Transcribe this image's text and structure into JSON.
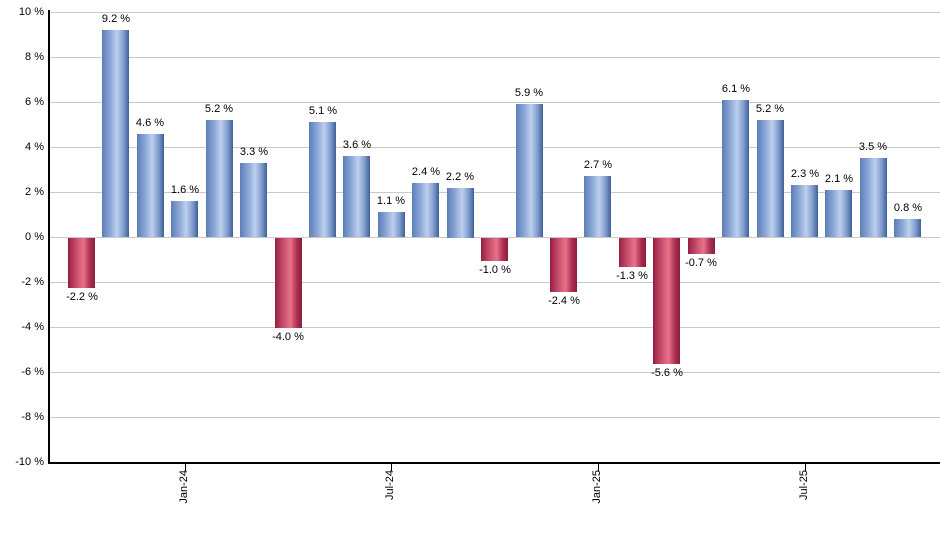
{
  "chart_data": {
    "type": "bar",
    "title": "",
    "description": "Monthly returns bar chart, positive months blue, negative months red",
    "values": [
      -2.2,
      9.2,
      4.6,
      1.6,
      5.2,
      3.3,
      -4.0,
      5.1,
      3.6,
      1.1,
      2.4,
      2.2,
      -1.0,
      5.9,
      -2.4,
      2.7,
      -1.3,
      -5.6,
      -0.7,
      6.1,
      5.2,
      2.3,
      2.1,
      3.5,
      0.8
    ],
    "value_labels": [
      "-2.2 %",
      "9.2 %",
      "4.6 %",
      "1.6 %",
      "5.2 %",
      "3.3 %",
      "-4.0 %",
      "5.1 %",
      "3.6 %",
      "1.1 %",
      "2.4 %",
      "2.2 %",
      "-1.0 %",
      "5.9 %",
      "-2.4 %",
      "2.7 %",
      "-1.3 %",
      "-5.6 %",
      "-0.7 %",
      "6.1 %",
      "5.2 %",
      "2.3 %",
      "2.1 %",
      "3.5 %",
      "0.8 %"
    ],
    "x_ticks": [
      {
        "label": "Jan-24",
        "bar_index": 3
      },
      {
        "label": "Jul-24",
        "bar_index": 9
      },
      {
        "label": "Jan-25",
        "bar_index": 15
      },
      {
        "label": "Jul-25",
        "bar_index": 21
      }
    ],
    "y_tick_labels": [
      "10 %",
      "8 %",
      "6 %",
      "4 %",
      "2 %",
      "0 %",
      "-2 %",
      "-4 %",
      "-6 %",
      "-8 %",
      "-10 %"
    ],
    "y_tick_values": [
      10,
      8,
      6,
      4,
      2,
      0,
      -2,
      -4,
      -6,
      -8,
      -10
    ],
    "ylim": [
      -10,
      10
    ],
    "grid": true,
    "legend_position": "none",
    "colors": {
      "positive_bar_dark": "#3e6097",
      "positive_bar_light": "#bdcfed",
      "negative_bar_dark": "#891d3e",
      "negative_bar_light": "#e87188",
      "gridline": "#c9c9c9",
      "axis": "#000000",
      "background": "#ffffff",
      "text": "#000000"
    }
  }
}
